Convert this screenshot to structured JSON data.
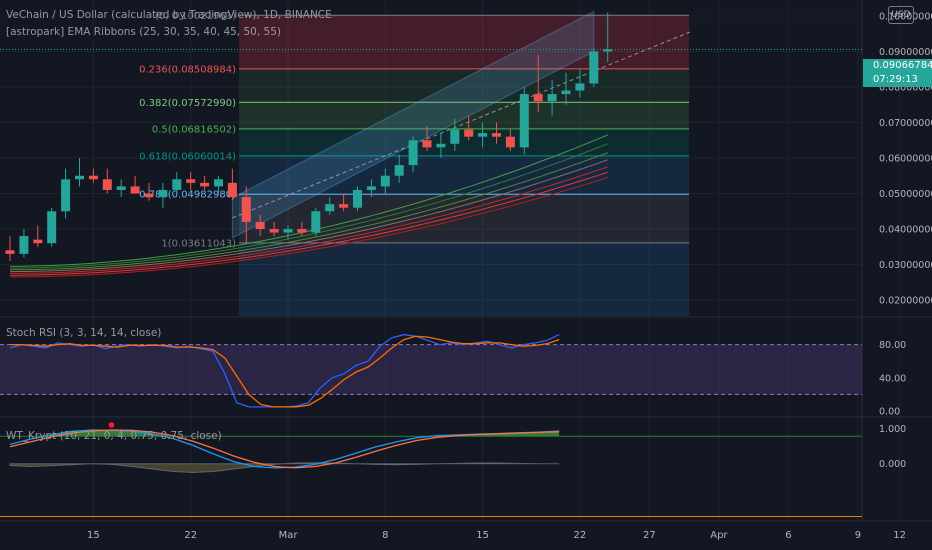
{
  "header": {
    "symbol_line": "VeChain / US Dollar (calculated by TradingView), 1D, BINANCE",
    "ribbon_indicator": "[astropark] EMA Ribbons (25, 30, 35, 40, 45, 50, 55)",
    "stoch_indicator": "Stoch RSI (3, 3, 14, 14, close)",
    "wt_indicator": "WT_Krypt (10, 21, 0, 4, 0.75, 0.75, close)"
  },
  "currency_button": "USD",
  "last_price": {
    "value": "0.09066784",
    "countdown": "07:29:13"
  },
  "colors": {
    "background": "#131722",
    "up": "#26a69a",
    "down": "#ef5350",
    "grid": "#1e222d"
  },
  "chart_data": [
    {
      "type": "candlestick",
      "title": "VeChain / US Dollar (calculated by TradingView), 1D, BINANCE",
      "ylim": [
        0.0155,
        0.1045
      ],
      "y_ticks": [
        0.02,
        0.03,
        0.04,
        0.05,
        0.06,
        0.07,
        0.08,
        0.09,
        0.1
      ],
      "y_tick_labels": [
        "0.02000000",
        "0.03000000",
        "0.04000000",
        "0.05000000",
        "0.06000000",
        "0.07000000",
        "0.08000000",
        "0.09000000",
        "0.10000000"
      ],
      "x_tick_labels": [
        {
          "label": "15",
          "bar": 6
        },
        {
          "label": "22",
          "bar": 13
        },
        {
          "label": "Mar",
          "bar": 20
        },
        {
          "label": "8",
          "bar": 27
        },
        {
          "label": "15",
          "bar": 34
        },
        {
          "label": "22",
          "bar": 41
        },
        {
          "label": "27",
          "bar": 46
        },
        {
          "label": "Apr",
          "bar": 51
        },
        {
          "label": "6",
          "bar": 56
        },
        {
          "label": "9",
          "bar": 61
        },
        {
          "label": "12",
          "bar": 64
        }
      ],
      "candles": [
        {
          "o": 0.034,
          "h": 0.038,
          "l": 0.031,
          "c": 0.033
        },
        {
          "o": 0.033,
          "h": 0.04,
          "l": 0.032,
          "c": 0.038
        },
        {
          "o": 0.037,
          "h": 0.041,
          "l": 0.035,
          "c": 0.036
        },
        {
          "o": 0.036,
          "h": 0.046,
          "l": 0.035,
          "c": 0.045
        },
        {
          "o": 0.045,
          "h": 0.057,
          "l": 0.043,
          "c": 0.054
        },
        {
          "o": 0.054,
          "h": 0.06,
          "l": 0.052,
          "c": 0.055
        },
        {
          "o": 0.055,
          "h": 0.057,
          "l": 0.053,
          "c": 0.054
        },
        {
          "o": 0.054,
          "h": 0.057,
          "l": 0.05,
          "c": 0.051
        },
        {
          "o": 0.051,
          "h": 0.054,
          "l": 0.049,
          "c": 0.052
        },
        {
          "o": 0.052,
          "h": 0.055,
          "l": 0.05,
          "c": 0.05
        },
        {
          "o": 0.05,
          "h": 0.053,
          "l": 0.048,
          "c": 0.049
        },
        {
          "o": 0.049,
          "h": 0.053,
          "l": 0.046,
          "c": 0.051
        },
        {
          "o": 0.051,
          "h": 0.056,
          "l": 0.05,
          "c": 0.054
        },
        {
          "o": 0.054,
          "h": 0.056,
          "l": 0.051,
          "c": 0.053
        },
        {
          "o": 0.053,
          "h": 0.055,
          "l": 0.051,
          "c": 0.052
        },
        {
          "o": 0.052,
          "h": 0.055,
          "l": 0.05,
          "c": 0.054
        },
        {
          "o": 0.053,
          "h": 0.057,
          "l": 0.048,
          "c": 0.049
        },
        {
          "o": 0.049,
          "h": 0.052,
          "l": 0.036,
          "c": 0.042
        },
        {
          "o": 0.042,
          "h": 0.044,
          "l": 0.038,
          "c": 0.04
        },
        {
          "o": 0.04,
          "h": 0.042,
          "l": 0.038,
          "c": 0.039
        },
        {
          "o": 0.039,
          "h": 0.041,
          "l": 0.037,
          "c": 0.04
        },
        {
          "o": 0.04,
          "h": 0.042,
          "l": 0.038,
          "c": 0.039
        },
        {
          "o": 0.039,
          "h": 0.046,
          "l": 0.038,
          "c": 0.045
        },
        {
          "o": 0.045,
          "h": 0.049,
          "l": 0.044,
          "c": 0.047
        },
        {
          "o": 0.047,
          "h": 0.05,
          "l": 0.045,
          "c": 0.046
        },
        {
          "o": 0.046,
          "h": 0.052,
          "l": 0.045,
          "c": 0.051
        },
        {
          "o": 0.051,
          "h": 0.054,
          "l": 0.049,
          "c": 0.052
        },
        {
          "o": 0.052,
          "h": 0.057,
          "l": 0.05,
          "c": 0.055
        },
        {
          "o": 0.055,
          "h": 0.061,
          "l": 0.053,
          "c": 0.058
        },
        {
          "o": 0.058,
          "h": 0.066,
          "l": 0.056,
          "c": 0.065
        },
        {
          "o": 0.065,
          "h": 0.069,
          "l": 0.062,
          "c": 0.063
        },
        {
          "o": 0.063,
          "h": 0.067,
          "l": 0.06,
          "c": 0.064
        },
        {
          "o": 0.064,
          "h": 0.071,
          "l": 0.062,
          "c": 0.068
        },
        {
          "o": 0.068,
          "h": 0.072,
          "l": 0.065,
          "c": 0.066
        },
        {
          "o": 0.066,
          "h": 0.07,
          "l": 0.063,
          "c": 0.067
        },
        {
          "o": 0.067,
          "h": 0.07,
          "l": 0.064,
          "c": 0.066
        },
        {
          "o": 0.066,
          "h": 0.068,
          "l": 0.062,
          "c": 0.063
        },
        {
          "o": 0.063,
          "h": 0.08,
          "l": 0.061,
          "c": 0.078
        },
        {
          "o": 0.078,
          "h": 0.089,
          "l": 0.073,
          "c": 0.076
        },
        {
          "o": 0.076,
          "h": 0.082,
          "l": 0.072,
          "c": 0.078
        },
        {
          "o": 0.078,
          "h": 0.084,
          "l": 0.075,
          "c": 0.079
        },
        {
          "o": 0.079,
          "h": 0.085,
          "l": 0.077,
          "c": 0.081
        },
        {
          "o": 0.081,
          "h": 0.091,
          "l": 0.08,
          "c": 0.09
        },
        {
          "o": 0.09,
          "h": 0.101,
          "l": 0.087,
          "c": 0.0906
        }
      ],
      "fib_levels": [
        {
          "label": "(0, 0.10021961)",
          "price": 0.1002
        },
        {
          "label": "0.236(0.08508984)",
          "price": 0.0851
        },
        {
          "label": "0.382(0.07572990)",
          "price": 0.0757
        },
        {
          "label": "0.5(0.06816502)",
          "price": 0.0682
        },
        {
          "label": "0.618(0.06060014)",
          "price": 0.0606
        },
        {
          "label": "0.786(0.04982980)",
          "price": 0.0498
        },
        {
          "label": "1(0.03611043)",
          "price": 0.0361
        }
      ],
      "ema_ribbon_series": [
        {
          "start": 0.0295,
          "end": 0.0665
        },
        {
          "start": 0.029,
          "end": 0.064
        },
        {
          "start": 0.0285,
          "end": 0.0615
        },
        {
          "start": 0.028,
          "end": 0.0595
        },
        {
          "start": 0.0275,
          "end": 0.0575
        },
        {
          "start": 0.027,
          "end": 0.056
        },
        {
          "start": 0.0265,
          "end": 0.0545
        }
      ]
    },
    {
      "type": "line",
      "title": "Stoch RSI (3, 3, 14, 14, close)",
      "ylim": [
        -6,
        112
      ],
      "y_ticks": [
        0,
        40,
        80
      ],
      "y_tick_labels": [
        "0.00",
        "40.00",
        "80.00"
      ],
      "band": [
        20,
        80
      ],
      "series": [
        {
          "values": [
            76,
            80,
            78,
            76,
            82,
            80,
            78,
            80,
            75,
            78,
            80,
            78,
            80,
            78,
            76,
            78,
            75,
            72,
            45,
            10,
            5,
            5,
            5,
            5,
            6,
            10,
            28,
            40,
            45,
            55,
            60,
            78,
            88,
            92,
            90,
            85,
            80,
            82,
            80,
            82,
            84,
            80,
            76,
            80,
            82,
            85,
            92
          ]
        },
        {
          "values": [
            80,
            80,
            79,
            78,
            80,
            81,
            79,
            79,
            78,
            77,
            79,
            79,
            79,
            79,
            77,
            77,
            76,
            74,
            64,
            42,
            20,
            8,
            5,
            5,
            5,
            7,
            15,
            26,
            38,
            47,
            53,
            64,
            76,
            86,
            90,
            89,
            86,
            83,
            81,
            81,
            82,
            82,
            80,
            78,
            79,
            81,
            86
          ]
        }
      ]
    },
    {
      "type": "line",
      "title": "WT_Krypt (10, 21, 0, 4, 0.75, 0.75, close)",
      "ylim": [
        -1.6,
        1.3
      ],
      "y_ticks": [
        0,
        1
      ],
      "y_tick_labels": [
        "0.000",
        "1.000"
      ],
      "series": [
        {
          "values": [
            0.55,
            0.7,
            0.82,
            0.92,
            0.96,
            0.95,
            0.92,
            0.85,
            0.72,
            0.52,
            0.28,
            0.06,
            -0.08,
            -0.12,
            -0.1,
            -0.02,
            0.12,
            0.3,
            0.48,
            0.62,
            0.74,
            0.8,
            0.82,
            0.84,
            0.86,
            0.88,
            0.9,
            0.93
          ]
        },
        {
          "values": [
            0.48,
            0.62,
            0.76,
            0.87,
            0.93,
            0.96,
            0.95,
            0.9,
            0.8,
            0.64,
            0.44,
            0.22,
            0.04,
            -0.08,
            -0.12,
            -0.08,
            0.02,
            0.18,
            0.36,
            0.52,
            0.66,
            0.75,
            0.8,
            0.83,
            0.85,
            0.87,
            0.89,
            0.91
          ]
        }
      ]
    }
  ]
}
